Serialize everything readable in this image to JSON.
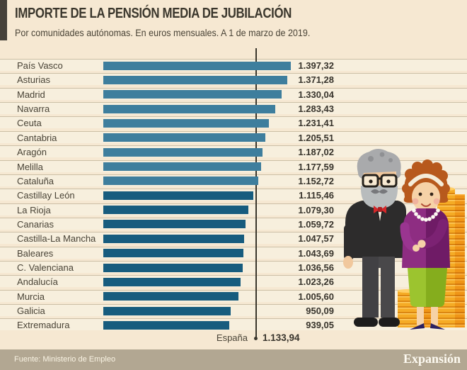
{
  "header": {
    "title": "IMPORTE DE LA PENSIÓN MEDIA DE JUBILACIÓN",
    "subtitle": "Por comunidades autónomas. En euros mensuales. A 1 de marzo de 2019."
  },
  "chart_data": {
    "type": "bar",
    "orientation": "horizontal",
    "title": "IMPORTE DE LA PENSIÓN MEDIA DE JUBILACIÓN",
    "subtitle": "Por comunidades autónomas. En euros mensuales. A 1 de marzo de 2019.",
    "unit": "euros mensuales",
    "categories": [
      "País Vasco",
      "Asturias",
      "Madrid",
      "Navarra",
      "Ceuta",
      "Cantabria",
      "Aragón",
      "Melilla",
      "Cataluña",
      "Castillay León",
      "La Rioja",
      "Canarias",
      "Castilla-La Mancha",
      "Baleares",
      "C. Valenciana",
      "Andalucía",
      "Murcia",
      "Galicia",
      "Extremadura"
    ],
    "values": [
      1397.32,
      1371.28,
      1330.04,
      1283.43,
      1231.41,
      1205.51,
      1187.02,
      1177.59,
      1152.72,
      1115.46,
      1079.3,
      1059.72,
      1047.57,
      1043.69,
      1036.56,
      1023.26,
      1005.6,
      950.09,
      939.05
    ],
    "value_labels": [
      "1.397,32",
      "1.371,28",
      "1.330,04",
      "1.283,43",
      "1.231,41",
      "1.205,51",
      "1.187,02",
      "1.177,59",
      "1.152,72",
      "1.115,46",
      "1.079,30",
      "1.059,72",
      "1.047,57",
      "1.043,69",
      "1.036,56",
      "1.023,26",
      "1.005,60",
      "950,09",
      "939,05"
    ],
    "reference": {
      "label": "España",
      "value": 1133.94,
      "value_label": "1.133,94"
    },
    "xlim": [
      0,
      1397.32
    ],
    "grid": false,
    "legend": "none",
    "colors": {
      "above_reference": "#3e7e9d",
      "below_reference": "#175c7e"
    }
  },
  "footer": {
    "source": "Fuente: Ministerio de Empleo",
    "brand": "Expansión"
  },
  "illustration": {
    "description": "Flat-style elderly couple (man in black suit with red bow tie, woman in purple cardigan and green skirt) standing in front of stacks of gold coins"
  }
}
